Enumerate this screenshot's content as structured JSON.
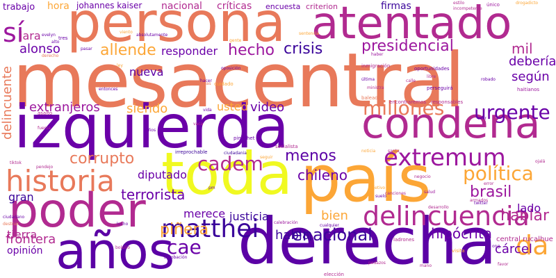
{
  "palette": [
    "#0d0887",
    "#6a00a8",
    "#b12a90",
    "#e16462",
    "#fca636",
    "#f0f921"
  ],
  "words": [
    {
      "text": "mesacentral",
      "color": "#e8795a"
    },
    {
      "text": "izquierda",
      "color": "#6a00a8"
    },
    {
      "text": "derecha",
      "color": "#5b01a5"
    },
    {
      "text": "país",
      "color": "#fca636"
    },
    {
      "text": "persona",
      "color": "#e8795a"
    },
    {
      "text": "atentado",
      "color": "#b12a90"
    },
    {
      "text": "toda",
      "color": "#f0f921"
    },
    {
      "text": "condena",
      "color": "#b12a90"
    },
    {
      "text": "poder",
      "color": "#b12a90"
    },
    {
      "text": "años",
      "color": "#5b01a5"
    },
    {
      "text": "historia",
      "color": "#e8795a"
    },
    {
      "text": "delincuencia",
      "color": "#b12a90"
    },
    {
      "text": "matthei",
      "color": "#3a049a"
    },
    {
      "text": "extremum",
      "color": "#9c179e"
    },
    {
      "text": "millones",
      "color": "#e8795a"
    },
    {
      "text": "cadem",
      "color": "#b12a90"
    },
    {
      "text": "presidencial",
      "color": "#9c179e"
    },
    {
      "text": "da",
      "color": "#fca636"
    },
    {
      "text": "sí",
      "color": "#9c179e"
    },
    {
      "text": "urgente",
      "color": "#6a00a8"
    },
    {
      "text": "política",
      "color": "#fca636"
    },
    {
      "text": "enacional",
      "color": "#3a049a"
    },
    {
      "text": "crisis",
      "color": "#3a049a"
    },
    {
      "text": "hecho",
      "color": "#9c179e"
    },
    {
      "text": "allende",
      "color": "#fca636"
    },
    {
      "text": "menos",
      "color": "#5b01a5"
    },
    {
      "text": "corrupto",
      "color": "#e8795a"
    },
    {
      "text": "brasil",
      "color": "#9c179e"
    },
    {
      "text": "cae",
      "color": "#6a00a8"
    },
    {
      "text": "piñera",
      "color": "#fca636"
    },
    {
      "text": "chileno",
      "color": "#6a00a8"
    },
    {
      "text": "hablar",
      "color": "#b12a90"
    },
    {
      "text": "terrorista",
      "color": "#6a00a8"
    },
    {
      "text": "delincuente",
      "color": "#e8795a"
    },
    {
      "text": "frontera",
      "color": "#b12a90"
    },
    {
      "text": "hipócrita",
      "color": "#6a00a8"
    },
    {
      "text": "extranjeros",
      "color": "#9c179e"
    },
    {
      "text": "siendo",
      "color": "#fca636"
    },
    {
      "text": "video",
      "color": "#6a00a8"
    },
    {
      "text": "mil",
      "color": "#b12a90"
    },
    {
      "text": "según",
      "color": "#6a00a8"
    },
    {
      "text": "debería",
      "color": "#6a00a8"
    },
    {
      "text": "jara",
      "color": "#b12a90"
    },
    {
      "text": "alonso",
      "color": "#6a00a8"
    },
    {
      "text": "nueva",
      "color": "#5b01a5"
    },
    {
      "text": "responder",
      "color": "#6a00a8"
    },
    {
      "text": "merece",
      "color": "#6a00a8"
    },
    {
      "text": "justicia",
      "color": "#3a049a"
    },
    {
      "text": "habla",
      "color": "#3a049a"
    },
    {
      "text": "bien",
      "color": "#fca636"
    },
    {
      "text": "lado",
      "color": "#6a00a8"
    },
    {
      "text": "cárcel",
      "color": "#6a00a8"
    },
    {
      "text": "gran",
      "color": "#3a049a"
    },
    {
      "text": "tierra",
      "color": "#b12a90"
    },
    {
      "text": "diputado",
      "color": "#6a00a8"
    },
    {
      "text": "usted",
      "color": "#fca636"
    },
    {
      "text": "opinión",
      "color": "#6a00a8"
    },
    {
      "text": "firmas",
      "color": "#3a049a"
    },
    {
      "text": "nacional",
      "color": "#b12a90"
    },
    {
      "text": "críticas",
      "color": "#b12a90"
    },
    {
      "text": "encuesta",
      "color": "#6a00a8"
    },
    {
      "text": "criterion",
      "color": "#b12a90"
    },
    {
      "text": "trabajo",
      "color": "#6a00a8"
    },
    {
      "text": "hora",
      "color": "#fca636"
    },
    {
      "text": "johannes kaiser",
      "color": "#6a00a8"
    },
    {
      "text": "central rucalhue",
      "color": "#b12a90"
    },
    {
      "text": "único",
      "color": "#9c179e"
    },
    {
      "text": "estilo",
      "color": "#b12a90"
    },
    {
      "text": "incompetente",
      "color": "#b12a90"
    },
    {
      "text": "drogadicto",
      "color": "#fca636"
    },
    {
      "text": "inmigración",
      "color": "#b12a90"
    },
    {
      "text": "oportunidades",
      "color": "#6a00a8"
    },
    {
      "text": "encontraremos",
      "color": "#b12a90"
    },
    {
      "text": "responsables",
      "color": "#b12a90"
    },
    {
      "text": "baleados",
      "color": "#e8795a"
    },
    {
      "text": "irreprochable",
      "color": "#3a049a"
    },
    {
      "text": "ciudadania",
      "color": "#3a049a"
    },
    {
      "text": "pinochet",
      "color": "#6a00a8"
    },
    {
      "text": "socialista",
      "color": "#b12a90"
    },
    {
      "text": "santa",
      "color": "#b12a90"
    },
    {
      "text": "noticia",
      "color": "#fca636"
    },
    {
      "text": "haitianos",
      "color": "#9c179e"
    },
    {
      "text": "perseguirá",
      "color": "#6a00a8"
    },
    {
      "text": "ladrones",
      "color": "#b12a90"
    },
    {
      "text": "visita",
      "color": "#fca636"
    },
    {
      "text": "elección",
      "color": "#b12a90"
    },
    {
      "text": "favor",
      "color": "#b12a90"
    },
    {
      "text": "pedazos",
      "color": "#b12a90"
    },
    {
      "text": "vida",
      "color": "#6a00a8"
    },
    {
      "text": "cuidado",
      "color": "#fca636"
    },
    {
      "text": "niños",
      "color": "#6a00a8"
    },
    {
      "text": "asalto",
      "color": "#b12a90"
    },
    {
      "text": "fuerza",
      "color": "#b12a90"
    },
    {
      "text": "pendejo",
      "color": "#b12a90"
    },
    {
      "text": "tiktok",
      "color": "#b12a90"
    },
    {
      "text": "ciudadano",
      "color": "#6a00a8"
    },
    {
      "text": "destruir",
      "color": "#e8795a"
    },
    {
      "text": "gente",
      "color": "#fca636"
    },
    {
      "text": "evelyn",
      "color": "#6a00a8"
    },
    {
      "text": "tres",
      "color": "#6a00a8"
    },
    {
      "text": "alto",
      "color": "#6a00a8"
    },
    {
      "text": "viento",
      "color": "#fca636"
    },
    {
      "text": "oposición",
      "color": "#6a00a8"
    },
    {
      "text": "problemas",
      "color": "#e8795a"
    },
    {
      "text": "entonces",
      "color": "#6a00a8"
    },
    {
      "text": "derecho",
      "color": "#e8795a"
    },
    {
      "text": "haber",
      "color": "#9c179e"
    },
    {
      "text": "última",
      "color": "#6a00a8"
    },
    {
      "text": "ministra",
      "color": "#b12a90"
    },
    {
      "text": "robado",
      "color": "#6a00a8"
    },
    {
      "text": "libre",
      "color": "#b12a90"
    },
    {
      "text": "calle",
      "color": "#b12a90"
    },
    {
      "text": "mano",
      "color": "#b12a90"
    },
    {
      "text": "mar",
      "color": "#6a00a8"
    },
    {
      "text": "negocio",
      "color": "#b12a90"
    },
    {
      "text": "salud",
      "color": "#9c179e"
    },
    {
      "text": "error",
      "color": "#b12a90"
    },
    {
      "text": "armados",
      "color": "#b12a90"
    },
    {
      "text": "twitter",
      "color": "#6a00a8"
    },
    {
      "text": "desarrollo",
      "color": "#b12a90"
    },
    {
      "text": "canciones",
      "color": "#b12a90"
    },
    {
      "text": "suelo",
      "color": "#6a00a8"
    },
    {
      "text": "objetivo",
      "color": "#fca636"
    },
    {
      "text": "cualquier",
      "color": "#6a00a8"
    },
    {
      "text": "seguir",
      "color": "#fca636"
    },
    {
      "text": "aprobación",
      "color": "#6a00a8"
    },
    {
      "text": "lucho",
      "color": "#6a00a8"
    },
    {
      "text": "pm",
      "color": "#6a00a8"
    },
    {
      "text": "bolsillo",
      "color": "#b12a90"
    },
    {
      "text": "calebración",
      "color": "#9c179e"
    },
    {
      "text": "hacer",
      "color": "#6a00a8"
    },
    {
      "text": "ong",
      "color": "#6a00a8"
    },
    {
      "text": "ley",
      "color": "#fca636"
    },
    {
      "text": "vaca",
      "color": "#b12a90"
    },
    {
      "text": "absolutamente",
      "color": "#6a00a8"
    },
    {
      "text": "sentencia",
      "color": "#fca636"
    },
    {
      "text": "pasar",
      "color": "#6a00a8"
    },
    {
      "text": "ojalá",
      "color": "#b12a90"
    }
  ]
}
